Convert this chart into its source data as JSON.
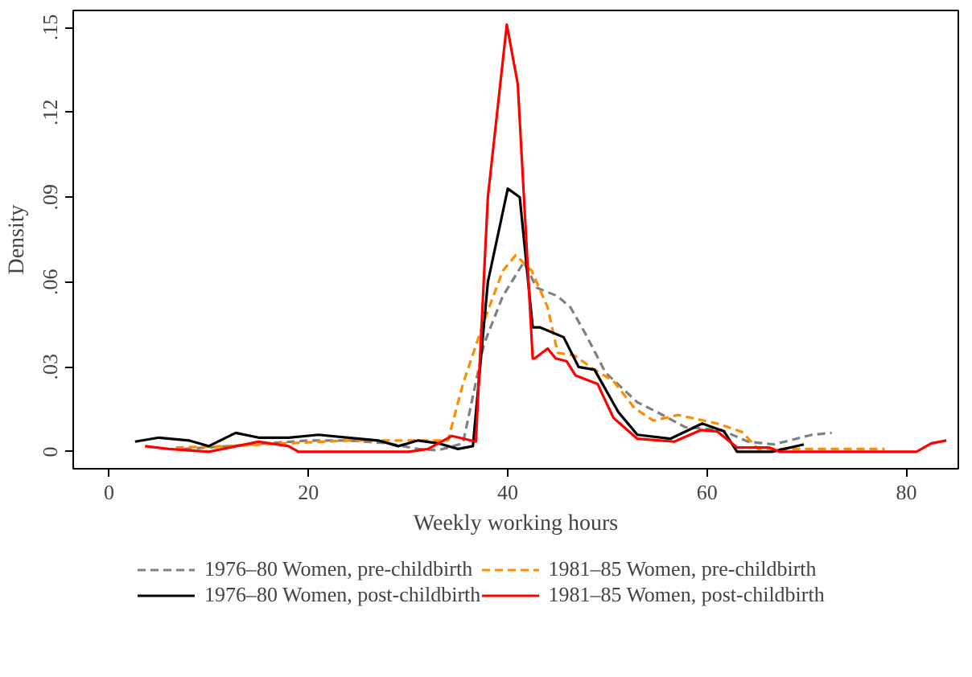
{
  "chart_data": {
    "type": "line",
    "xlabel": "Weekly working hours",
    "ylabel": "Density",
    "xlim": [
      -3.6,
      85.2
    ],
    "ylim": [
      -0.006,
      0.156
    ],
    "xticks": [
      0,
      20,
      40,
      60,
      80
    ],
    "yticks": [
      {
        "value": 0,
        "label": "0"
      },
      {
        "value": 0.03,
        "label": ".03"
      },
      {
        "value": 0.06,
        "label": ".06"
      },
      {
        "value": 0.09,
        "label": ".09"
      },
      {
        "value": 0.12,
        "label": ".12"
      },
      {
        "value": 0.15,
        "label": ".15"
      }
    ],
    "grid": false,
    "legend": "bottom",
    "marker": "none",
    "series": [
      {
        "name": "1976–80 Women, pre-childbirth",
        "color": "#808080",
        "line_style": "dashed",
        "x": [
          7.5,
          12,
          16,
          20,
          24,
          28,
          31,
          33,
          35.5,
          37.6,
          39.5,
          41.6,
          42.9,
          45,
          46.3,
          47.9,
          49.8,
          53,
          55,
          57.8,
          61.4,
          64.1,
          66.7,
          70.5,
          72.5
        ],
        "values": [
          0.001,
          0.002,
          0.003,
          0.004,
          0.004,
          0.003,
          0.001,
          0.0005,
          0.003,
          0.038,
          0.055,
          0.067,
          0.058,
          0.055,
          0.051,
          0.041,
          0.028,
          0.0175,
          0.014,
          0.0087,
          0.0077,
          0.0036,
          0.0026,
          0.006,
          0.0067
        ]
      },
      {
        "name": "1981–85 Women, pre-childbirth",
        "color": "#ff8c00",
        "line_style": "dashed",
        "x": [
          6.7,
          12,
          18,
          24,
          29.2,
          34,
          35.5,
          37.6,
          39.5,
          40.8,
          42.4,
          44,
          45,
          46.7,
          48.7,
          50.6,
          52.7,
          54.6,
          57.1,
          61,
          63.5,
          65.1,
          77.8
        ],
        "values": [
          0.0015,
          0.002,
          0.003,
          0.004,
          0.004,
          0.004,
          0.024,
          0.046,
          0.064,
          0.0695,
          0.064,
          0.051,
          0.035,
          0.034,
          0.029,
          0.025,
          0.0155,
          0.011,
          0.013,
          0.01,
          0.007,
          0.001,
          0.001
        ]
      },
      {
        "name": "1976–80 Women, post-childbirth",
        "color": "#000000",
        "line_style": "solid",
        "x": [
          2.6,
          5,
          8,
          10,
          12.7,
          15,
          18,
          21,
          24,
          27,
          29,
          31,
          33,
          35,
          36.5,
          38,
          40,
          41.2,
          42.5,
          43.2,
          45.6,
          47.1,
          48.7,
          51.1,
          53,
          56.3,
          59.5,
          61.7,
          63,
          66.5,
          69.7
        ],
        "values": [
          0.0036,
          0.005,
          0.004,
          0.002,
          0.0067,
          0.005,
          0.005,
          0.006,
          0.005,
          0.004,
          0.002,
          0.004,
          0.003,
          0.001,
          0.002,
          0.06,
          0.093,
          0.09,
          0.044,
          0.044,
          0.0405,
          0.03,
          0.029,
          0.014,
          0.006,
          0.0046,
          0.01,
          0.0072,
          0,
          0,
          0.0026
        ]
      },
      {
        "name": "1981–85 Women, post-childbirth",
        "color": "#ff0000",
        "line_style": "solid",
        "x": [
          3.6,
          6,
          10,
          15,
          18,
          19,
          30,
          32,
          34.4,
          36.8,
          38,
          39.9,
          41,
          42.5,
          42.7,
          44,
          44.8,
          45.9,
          46.8,
          49,
          50.6,
          53,
          56.7,
          59.4,
          61,
          63,
          66.2,
          67.3,
          81,
          82.5,
          84
        ],
        "values": [
          0.002,
          0.001,
          0,
          0.0036,
          0.002,
          0,
          0,
          0.001,
          0.0056,
          0.0036,
          0.09,
          0.151,
          0.13,
          0.033,
          0.033,
          0.0365,
          0.033,
          0.032,
          0.027,
          0.024,
          0.012,
          0.0046,
          0.0036,
          0.0077,
          0.0072,
          0.0015,
          0.0015,
          0,
          0,
          0.003,
          0.004
        ]
      }
    ]
  }
}
